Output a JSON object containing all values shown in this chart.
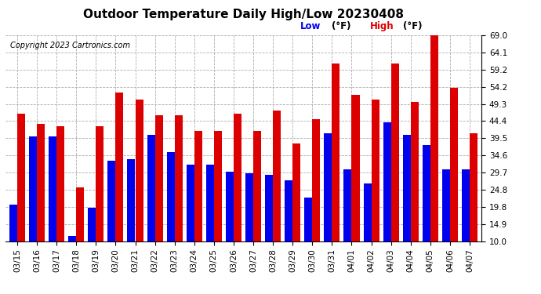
{
  "title": "Outdoor Temperature Daily High/Low 20230408",
  "copyright": "Copyright 2023 Cartronics.com",
  "legend_low": "Low",
  "legend_high": "High",
  "legend_unit": "(°F)",
  "low_color": "#0000ee",
  "high_color": "#dd0000",
  "background_color": "#ffffff",
  "ylim": [
    10.0,
    69.0
  ],
  "yticks": [
    10.0,
    14.9,
    19.8,
    24.8,
    29.7,
    34.6,
    39.5,
    44.4,
    49.3,
    54.2,
    59.2,
    64.1,
    69.0
  ],
  "dates": [
    "03/15",
    "03/16",
    "03/17",
    "03/18",
    "03/19",
    "03/20",
    "03/21",
    "03/22",
    "03/23",
    "03/24",
    "03/25",
    "03/26",
    "03/27",
    "03/28",
    "03/29",
    "03/30",
    "03/31",
    "04/01",
    "04/02",
    "04/03",
    "04/04",
    "04/05",
    "04/06",
    "04/07"
  ],
  "highs": [
    46.5,
    43.5,
    43.0,
    25.5,
    43.0,
    52.5,
    50.5,
    46.0,
    46.0,
    41.5,
    41.5,
    46.5,
    41.5,
    47.5,
    38.0,
    45.0,
    61.0,
    52.0,
    50.5,
    61.0,
    50.0,
    69.0,
    54.0,
    41.0
  ],
  "lows": [
    20.5,
    40.0,
    40.0,
    11.5,
    19.5,
    33.0,
    33.5,
    40.5,
    35.5,
    32.0,
    32.0,
    30.0,
    29.5,
    29.0,
    27.5,
    22.5,
    41.0,
    30.5,
    26.5,
    44.0,
    40.5,
    37.5,
    30.5,
    30.5
  ],
  "grid_color": "#999999",
  "title_fontsize": 11,
  "tick_fontsize": 7.5,
  "copyright_fontsize": 7,
  "legend_fontsize": 8.5,
  "bar_width": 0.4
}
